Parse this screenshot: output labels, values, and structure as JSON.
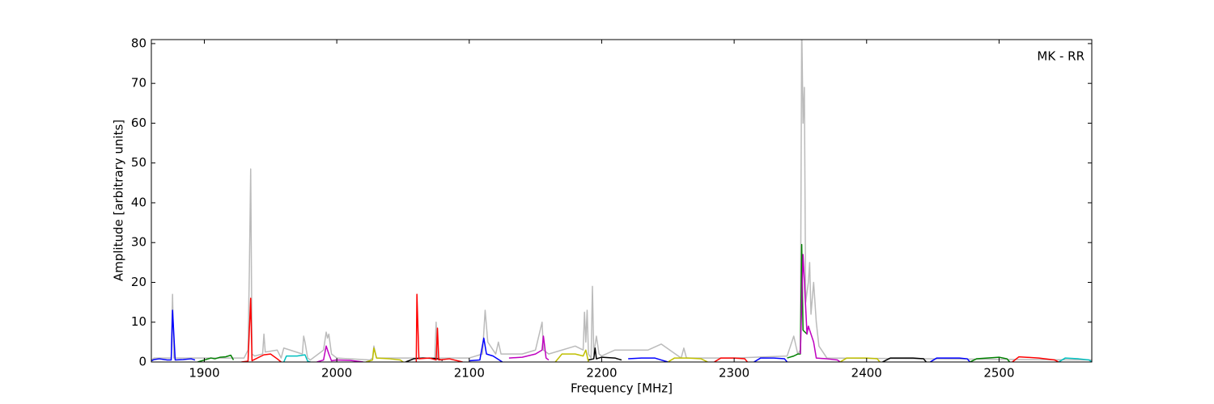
{
  "chart_data": {
    "type": "line",
    "annotation": "MK - RR",
    "x_label": "Frequency [MHz]",
    "y_label": "Amplitude [arbitrary units]",
    "xlim": [
      1860,
      2570
    ],
    "ylim": [
      0,
      81
    ],
    "xticks": [
      1900,
      2000,
      2100,
      2200,
      2300,
      2400,
      2500
    ],
    "yticks": [
      0,
      10,
      20,
      30,
      40,
      50,
      60,
      70,
      80
    ],
    "series": [
      {
        "color": "#bbbbbb",
        "x": [
          1860,
          1862,
          1875,
          1876,
          1877,
          1930,
          1933,
          1934,
          1935,
          1936,
          1938,
          1944,
          1945,
          1946,
          1955,
          1958,
          1960,
          1974,
          1975,
          1976,
          1978,
          1980,
          1990,
          1992,
          1993,
          1994,
          1996,
          2000,
          2025,
          2027,
          2028,
          2030,
          2060,
          2074,
          2075,
          2076,
          2100,
          2110,
          2112,
          2114,
          2120,
          2122,
          2124,
          2140,
          2150,
          2155,
          2156,
          2160,
          2170,
          2180,
          2186,
          2187,
          2188,
          2189,
          2190,
          2192,
          2193,
          2194,
          2196,
          2198,
          2200,
          2210,
          2235,
          2245,
          2260,
          2262,
          2264,
          2300,
          2340,
          2345,
          2348,
          2350,
          2351,
          2352,
          2353,
          2354,
          2356,
          2357,
          2358,
          2360,
          2362,
          2364,
          2370,
          2570
        ],
        "values": [
          0.5,
          1,
          1,
          17,
          1,
          1,
          3,
          23,
          48.5,
          2,
          1.5,
          2,
          7,
          2.5,
          3,
          1,
          3.5,
          2,
          6.5,
          5,
          1,
          0.5,
          3,
          7.5,
          6,
          7,
          2,
          1,
          0.5,
          1,
          4,
          1,
          1,
          1,
          10,
          1,
          1,
          2,
          13,
          5,
          2,
          5,
          2,
          2,
          3,
          10,
          3,
          2,
          3,
          4,
          3,
          12.5,
          5,
          13,
          2,
          1,
          19,
          2,
          6.5,
          2,
          1.5,
          3,
          3,
          4.5,
          1,
          3.5,
          1,
          1,
          1.5,
          6.5,
          2,
          3,
          85,
          60,
          69,
          15,
          20,
          25,
          12,
          20,
          10,
          4,
          1,
          0.5
        ]
      },
      {
        "color": "#0000ff",
        "x": [
          1860,
          1862,
          1866,
          1872,
          1875,
          1876,
          1878,
          1884,
          1890,
          1893
        ],
        "values": [
          0.3,
          0.6,
          0.8,
          0.5,
          0.5,
          13,
          0.5,
          0.6,
          0.8,
          0.5
        ]
      },
      {
        "color": "#008000",
        "x": [
          1895,
          1900,
          1905,
          1908,
          1912,
          1916,
          1920,
          1922
        ],
        "values": [
          0,
          0.5,
          1,
          0.8,
          1.2,
          1.3,
          1.7,
          0.5
        ]
      },
      {
        "color": "#ff0000",
        "x": [
          1928,
          1933,
          1935,
          1936,
          1937,
          1945,
          1950,
          1955,
          1958
        ],
        "values": [
          0,
          0.2,
          16,
          0.3,
          0.5,
          1.8,
          2,
          0.8,
          0
        ]
      },
      {
        "color": "#00bfbf",
        "x": [
          1960,
          1962,
          1970,
          1976,
          1978,
          1980
        ],
        "values": [
          0,
          1.5,
          1.5,
          1.8,
          0.2,
          0
        ]
      },
      {
        "color": "#bf00bf",
        "x": [
          1985,
          1990,
          1992,
          1994,
          1996,
          2000,
          2010,
          2020
        ],
        "values": [
          0,
          0.5,
          4,
          2,
          0.3,
          0.5,
          0.4,
          0
        ]
      },
      {
        "color": "#bfbf00",
        "x": [
          2022,
          2027,
          2028,
          2030,
          2040,
          2048,
          2050
        ],
        "values": [
          0,
          0.5,
          3.5,
          1,
          0.8,
          0.5,
          0
        ]
      },
      {
        "color": "#000000",
        "x": [
          2052,
          2058,
          2065,
          2075,
          2080
        ],
        "values": [
          0,
          0.8,
          1,
          0.9,
          0.4
        ]
      },
      {
        "color": "#ff0000",
        "x": [
          2060,
          2060.5,
          2062,
          2070,
          2075,
          2076,
          2077,
          2085,
          2095
        ],
        "values": [
          0,
          17,
          0.8,
          1,
          0.5,
          8.5,
          0.5,
          0.8,
          0
        ]
      },
      {
        "color": "#0000ff",
        "x": [
          2100,
          2108,
          2111,
          2113,
          2118,
          2125
        ],
        "values": [
          0.3,
          0.5,
          6,
          2,
          1.5,
          0
        ]
      },
      {
        "color": "#bf00bf",
        "x": [
          2130,
          2140,
          2150,
          2155,
          2156,
          2158,
          2160
        ],
        "values": [
          1,
          1.2,
          2,
          3,
          6.5,
          1,
          0.5
        ]
      },
      {
        "color": "#bfbf00",
        "x": [
          2165,
          2170,
          2180,
          2186,
          2188,
          2190
        ],
        "values": [
          0,
          2,
          2,
          1.5,
          3,
          0
        ]
      },
      {
        "color": "#000000",
        "x": [
          2190,
          2194,
          2195,
          2196,
          2200,
          2210,
          2215
        ],
        "values": [
          0.5,
          0.8,
          3.5,
          0.8,
          1.2,
          1,
          0.5
        ]
      },
      {
        "color": "#0000ff",
        "x": [
          2220,
          2230,
          2240,
          2245,
          2250
        ],
        "values": [
          0.8,
          1,
          1,
          0.5,
          0
        ]
      },
      {
        "color": "#bfbf00",
        "x": [
          2250,
          2255,
          2265,
          2275,
          2280
        ],
        "values": [
          0,
          1,
          1,
          0.8,
          0
        ]
      },
      {
        "color": "#ff0000",
        "x": [
          2285,
          2290,
          2300,
          2308,
          2310
        ],
        "values": [
          0,
          1,
          1,
          0.8,
          0
        ]
      },
      {
        "color": "#0000ff",
        "x": [
          2315,
          2320,
          2330,
          2338,
          2340
        ],
        "values": [
          0,
          1,
          1,
          0.8,
          0
        ]
      },
      {
        "color": "#008000",
        "x": [
          2340,
          2345,
          2348,
          2350,
          2351,
          2352,
          2355
        ],
        "values": [
          1,
          1.5,
          2,
          2,
          29.5,
          8,
          7
        ]
      },
      {
        "color": "#bf00bf",
        "x": [
          2350,
          2352,
          2355,
          2356,
          2360,
          2362,
          2370,
          2378,
          2380
        ],
        "values": [
          2,
          27,
          7,
          9,
          5,
          1,
          0.8,
          0.5,
          0
        ]
      },
      {
        "color": "#bfbf00",
        "x": [
          2380,
          2385,
          2400,
          2408,
          2410
        ],
        "values": [
          0,
          1,
          1,
          0.8,
          0
        ]
      },
      {
        "color": "#000000",
        "x": [
          2412,
          2418,
          2435,
          2443,
          2445
        ],
        "values": [
          0,
          1,
          1,
          0.8,
          0
        ]
      },
      {
        "color": "#0000ff",
        "x": [
          2448,
          2453,
          2470,
          2476,
          2478
        ],
        "values": [
          0,
          1,
          1,
          0.8,
          0
        ]
      },
      {
        "color": "#008000",
        "x": [
          2478,
          2483,
          2500,
          2506,
          2508
        ],
        "values": [
          0,
          0.8,
          1.2,
          0.8,
          0
        ]
      },
      {
        "color": "#ff0000",
        "x": [
          2510,
          2515,
          2530,
          2542,
          2545
        ],
        "values": [
          0,
          1.3,
          1,
          0.5,
          0
        ]
      },
      {
        "color": "#00bfbf",
        "x": [
          2545,
          2550,
          2560,
          2568,
          2570
        ],
        "values": [
          0,
          1,
          0.8,
          0.5,
          0
        ]
      }
    ]
  }
}
